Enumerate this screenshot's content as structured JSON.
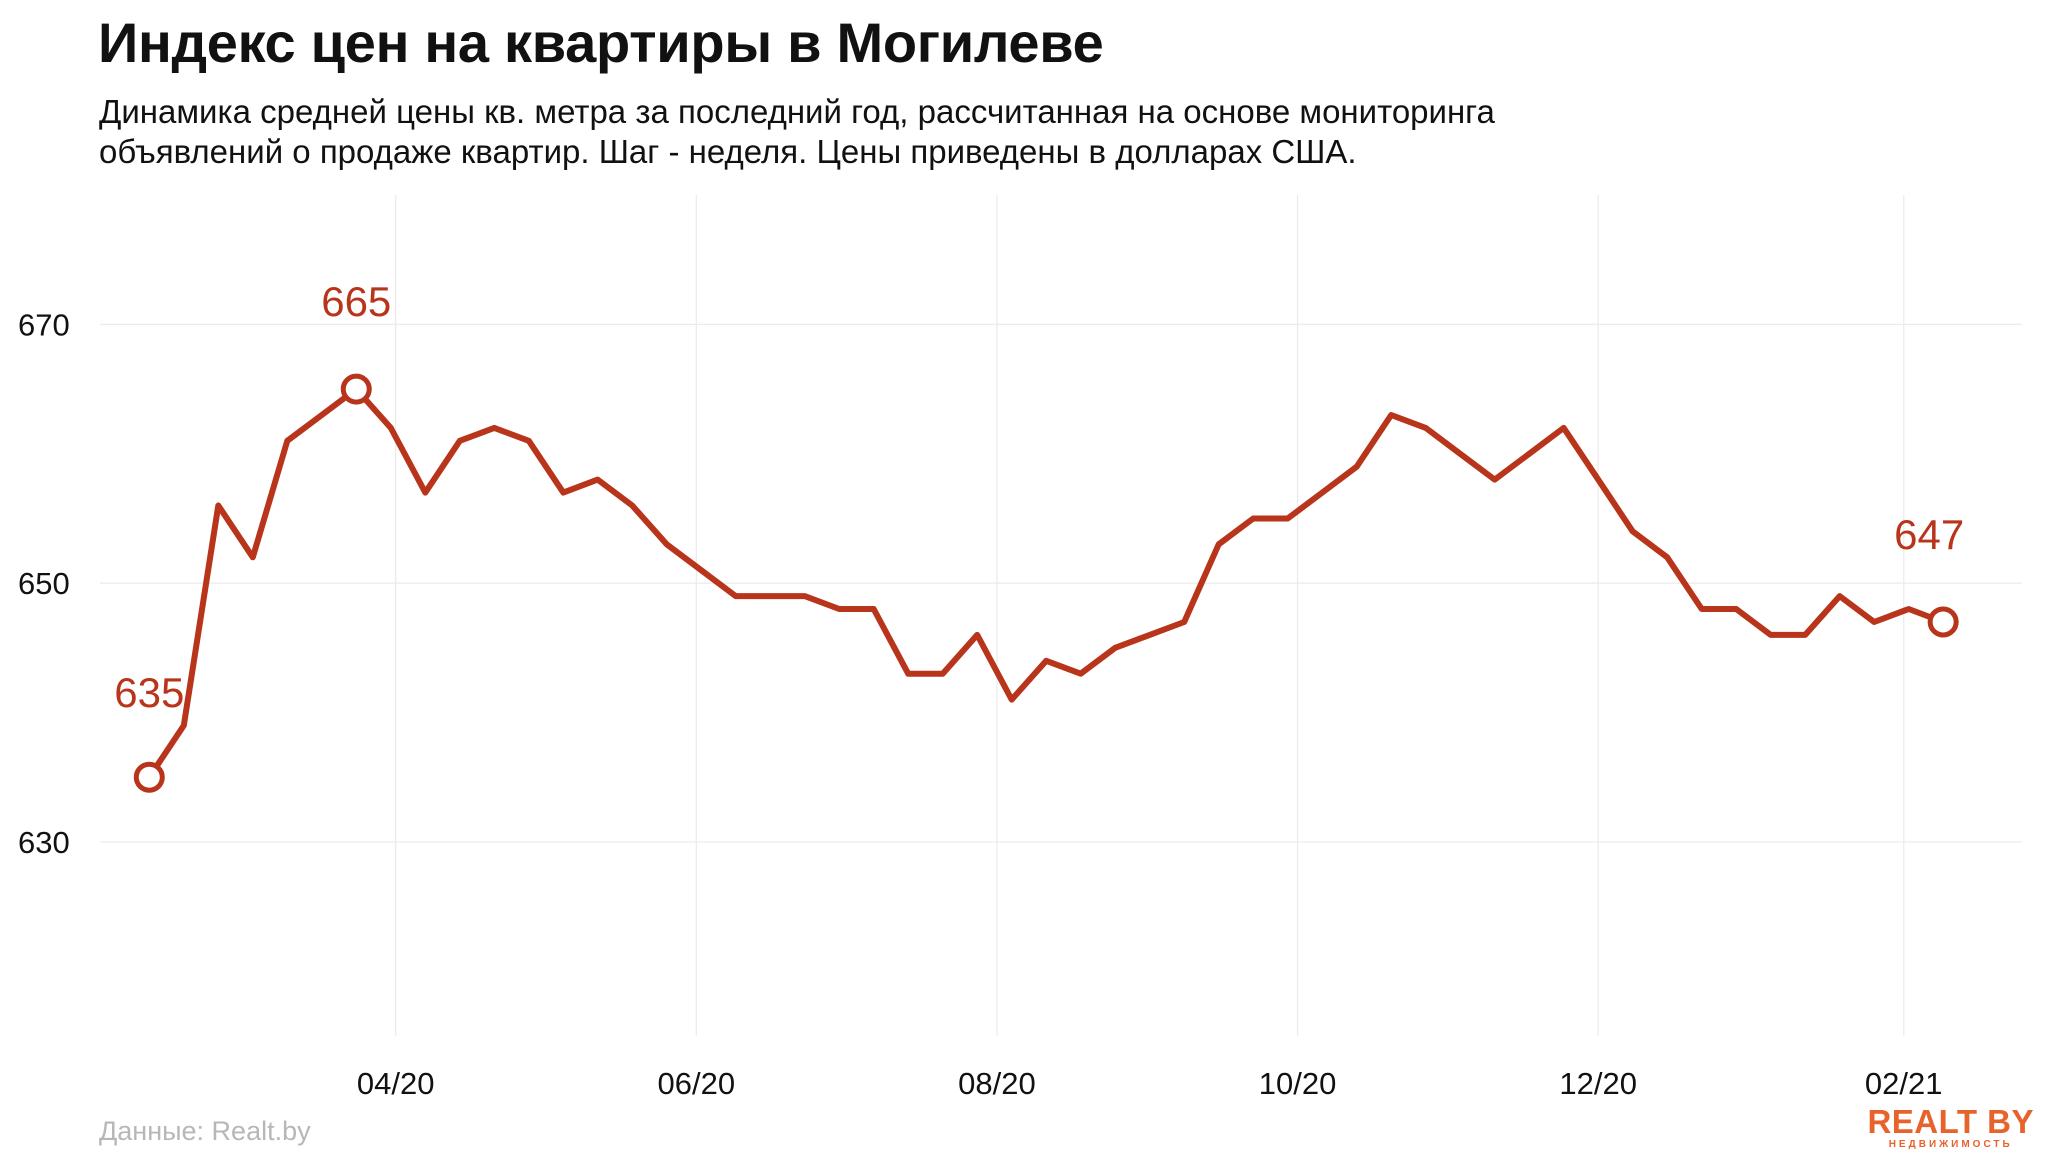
{
  "header": {
    "title": "Индекс цен на квартиры в Могилеве",
    "subtitle_line1": "Динамика средней цены кв. метра за последний год, рассчитанная на основе мониторинга",
    "subtitle_line2": "объявлений о продаже квартир. Шаг - неделя. Цены приведены в долларах США."
  },
  "footer": {
    "source": "Данные: Realt.by",
    "logo_main": "REALT BY",
    "logo_sub": "НЕДВИЖИМОСТЬ"
  },
  "colors": {
    "line": "#b8341b",
    "grid": "#ebebeb",
    "text": "#111111",
    "accent": "#e8622b"
  },
  "chart_data": {
    "type": "line",
    "title": "Индекс цен на квартиры в Могилеве",
    "xlabel": "",
    "ylabel": "",
    "ylim": [
      615,
      680
    ],
    "y_ticks": [
      630,
      650,
      670
    ],
    "x_ticks": [
      {
        "date": "2020-04-01",
        "label": "04/20"
      },
      {
        "date": "2020-06-01",
        "label": "06/20"
      },
      {
        "date": "2020-08-01",
        "label": "08/20"
      },
      {
        "date": "2020-10-01",
        "label": "10/20"
      },
      {
        "date": "2020-12-01",
        "label": "12/20"
      },
      {
        "date": "2021-02-01",
        "label": "02/21"
      }
    ],
    "grid": true,
    "series": [
      {
        "x": [
          "2020-02-11",
          "2020-02-18",
          "2020-02-25",
          "2020-03-03",
          "2020-03-10",
          "2020-03-17",
          "2020-03-24",
          "2020-03-31",
          "2020-04-07",
          "2020-04-14",
          "2020-04-21",
          "2020-04-28",
          "2020-05-05",
          "2020-05-12",
          "2020-05-19",
          "2020-05-26",
          "2020-06-02",
          "2020-06-09",
          "2020-06-16",
          "2020-06-23",
          "2020-06-30",
          "2020-07-07",
          "2020-07-14",
          "2020-07-21",
          "2020-07-28",
          "2020-08-04",
          "2020-08-11",
          "2020-08-18",
          "2020-08-25",
          "2020-09-01",
          "2020-09-08",
          "2020-09-15",
          "2020-09-22",
          "2020-09-29",
          "2020-10-06",
          "2020-10-13",
          "2020-10-20",
          "2020-10-27",
          "2020-11-03",
          "2020-11-10",
          "2020-11-17",
          "2020-11-24",
          "2020-12-01",
          "2020-12-08",
          "2020-12-15",
          "2020-12-22",
          "2020-12-29",
          "2021-01-05",
          "2021-01-12",
          "2021-01-19",
          "2021-01-26",
          "2021-02-02",
          "2021-02-09"
        ],
        "values": [
          635,
          639,
          656,
          652,
          661,
          663,
          665,
          662,
          657,
          661,
          662,
          661,
          657,
          658,
          656,
          653,
          651,
          649,
          649,
          649,
          648,
          648,
          643,
          643,
          646,
          641,
          644,
          643,
          645,
          646,
          647,
          653,
          655,
          655,
          657,
          659,
          663,
          662,
          660,
          658,
          660,
          662,
          658,
          654,
          652,
          648,
          648,
          646,
          646,
          649,
          647,
          648,
          647
        ]
      }
    ],
    "annotations": [
      {
        "label": "635",
        "index": 0
      },
      {
        "label": "665",
        "index": 6
      },
      {
        "label": "647",
        "index": 52
      }
    ]
  }
}
